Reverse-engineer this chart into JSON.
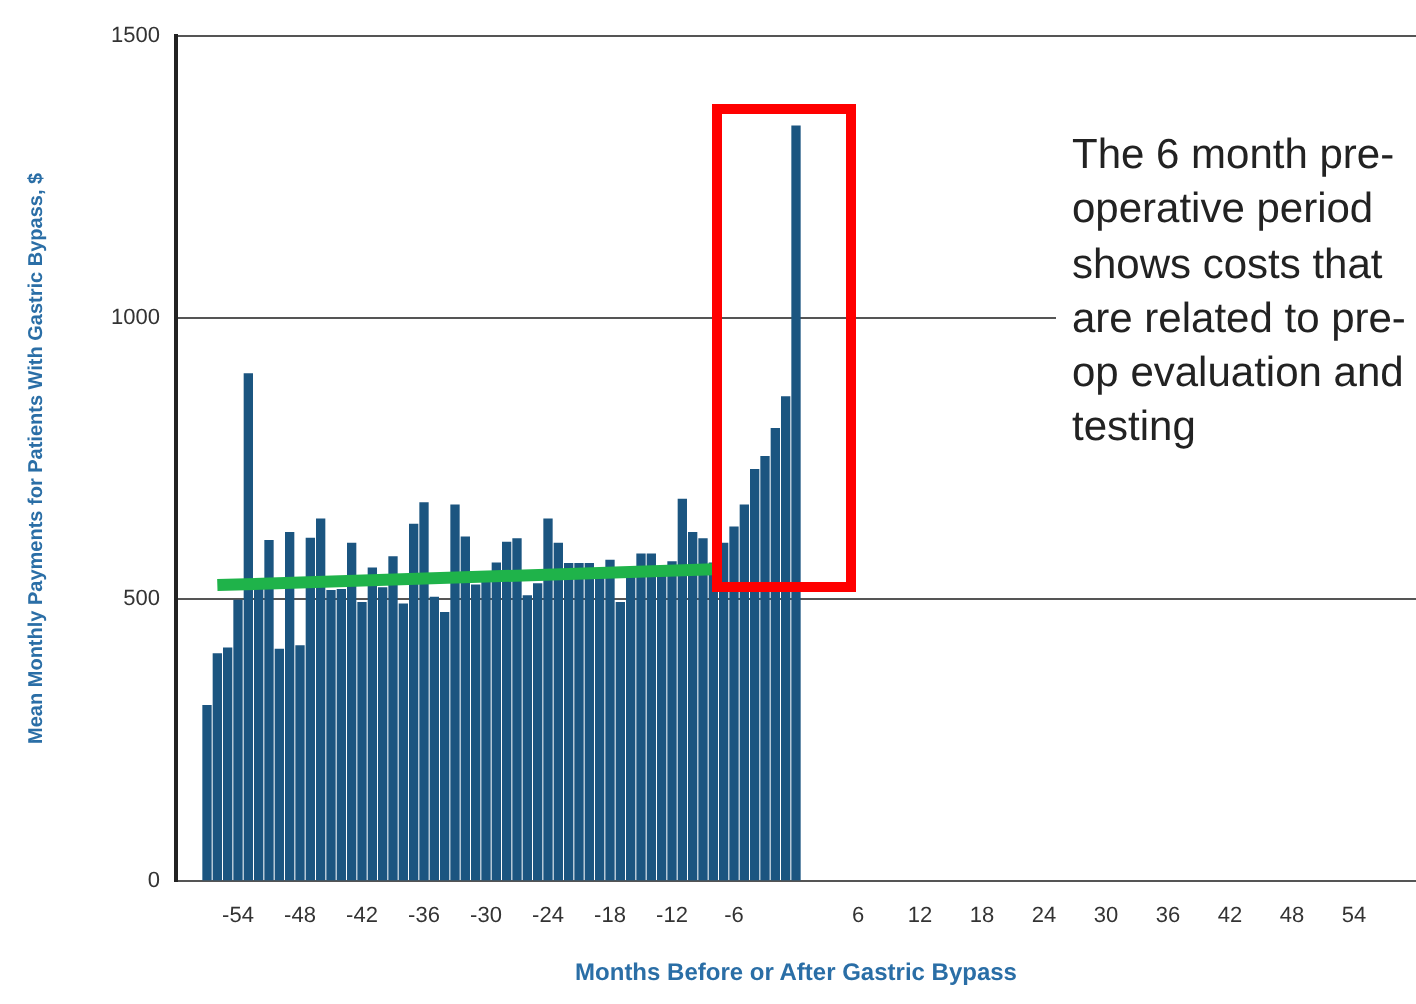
{
  "chart_data": {
    "type": "bar",
    "xlabel": "Months Before or After Gastric Bypass",
    "ylabel": "Mean Monthly Payments for Patients With Gastric Bypass, $",
    "xlim": [
      -60,
      60
    ],
    "xticks": [
      -54,
      -48,
      -42,
      -36,
      -30,
      -24,
      -18,
      -12,
      -6,
      6,
      12,
      18,
      24,
      30,
      36,
      42,
      48,
      54
    ],
    "ylim": [
      0,
      1500
    ],
    "yticks": [
      0,
      500,
      1000,
      1500
    ],
    "grid": "y",
    "series": [
      {
        "color": "#1b5580",
        "x": [
          -57,
          -56,
          -55,
          -54,
          -53,
          -52,
          -51,
          -50,
          -49,
          -48,
          -47,
          -46,
          -45,
          -44,
          -43,
          -42,
          -41,
          -40,
          -39,
          -38,
          -37,
          -36,
          -35,
          -34,
          -33,
          -32,
          -31,
          -30,
          -29,
          -28,
          -27,
          -26,
          -25,
          -24,
          -23,
          -22,
          -21,
          -20,
          -19,
          -18,
          -17,
          -16,
          -15,
          -14,
          -13,
          -12,
          -11,
          -10,
          -9,
          -8,
          -7,
          -6,
          -5,
          -4,
          -3,
          -2,
          -1,
          0
        ],
        "values": [
          311,
          403,
          413,
          498,
          900,
          520,
          604,
          411,
          618,
          417,
          608,
          642,
          515,
          517,
          599,
          494,
          555,
          520,
          575,
          491,
          633,
          671,
          503,
          476,
          667,
          610,
          525,
          530,
          564,
          601,
          607,
          506,
          527,
          642,
          599,
          563,
          563,
          563,
          541,
          569,
          494,
          541,
          580,
          580,
          552,
          566,
          677,
          618,
          607,
          564,
          599,
          628,
          667,
          730,
          753,
          803,
          859,
          1340
        ]
      },
      {
        "type": "line",
        "color": "#1fb34a",
        "x": [
          -56,
          -8
        ],
        "values": [
          525,
          553
        ]
      }
    ],
    "annotations": [
      "The 6 month pre-operative period shows costs that are related to pre-op evaluation and testing"
    ]
  }
}
